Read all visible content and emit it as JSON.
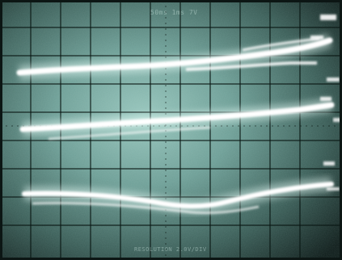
{
  "photo": {
    "readout_top": "50ms  1ms  7V",
    "readout_bottom": "RESOLUTION 2.0V/DIV",
    "trace_count": 3,
    "colors": {
      "screen_center": "#8fbdb4",
      "screen_edge": "#0c1614",
      "graticule": "#0a1513",
      "trace": "#ffffff",
      "trace_glow": "#e9fffb"
    }
  }
}
